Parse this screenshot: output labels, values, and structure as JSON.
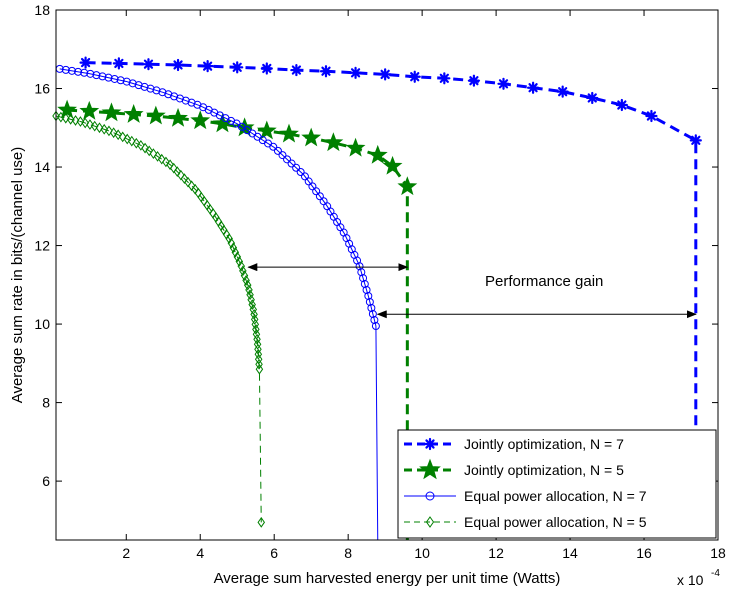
{
  "chart_data": {
    "type": "line",
    "title": "",
    "xlabel": "Average sum harvested energy per unit time (Watts)",
    "ylabel": "Average sum rate in bits/(channel use)",
    "x_multiplier_label": "x 10",
    "x_multiplier_exp": "-4",
    "xlim": [
      0.1,
      18
    ],
    "ylim": [
      4.5,
      18
    ],
    "xticks": [
      2,
      4,
      6,
      8,
      10,
      12,
      14,
      16,
      18
    ],
    "yticks": [
      6,
      8,
      10,
      12,
      14,
      16,
      18
    ],
    "grid": false,
    "legend_position": "bottom-right",
    "series": [
      {
        "name": "Jointly optimization, N = 7",
        "color": "#0000ff",
        "line_style": "dashed",
        "marker": "asterisk",
        "line_width": 3,
        "points": [
          [
            0.9,
            16.66
          ],
          [
            1.8,
            16.64
          ],
          [
            2.6,
            16.62
          ],
          [
            3.4,
            16.6
          ],
          [
            4.2,
            16.57
          ],
          [
            5.0,
            16.54
          ],
          [
            5.8,
            16.51
          ],
          [
            6.6,
            16.47
          ],
          [
            7.4,
            16.44
          ],
          [
            8.2,
            16.4
          ],
          [
            9.0,
            16.36
          ],
          [
            9.8,
            16.3
          ],
          [
            10.6,
            16.26
          ],
          [
            11.4,
            16.2
          ],
          [
            12.2,
            16.12
          ],
          [
            13.0,
            16.02
          ],
          [
            13.8,
            15.92
          ],
          [
            14.6,
            15.76
          ],
          [
            15.4,
            15.58
          ],
          [
            16.2,
            15.3
          ],
          [
            17.4,
            14.68
          ],
          [
            17.4,
            7.0
          ]
        ]
      },
      {
        "name": "Jointly optimization, N = 5",
        "color": "#008000",
        "line_style": "dashed",
        "marker": "star",
        "line_width": 3,
        "points": [
          [
            0.4,
            15.45
          ],
          [
            1.0,
            15.42
          ],
          [
            1.6,
            15.38
          ],
          [
            2.2,
            15.34
          ],
          [
            2.8,
            15.3
          ],
          [
            3.4,
            15.24
          ],
          [
            4.0,
            15.18
          ],
          [
            4.6,
            15.1
          ],
          [
            5.2,
            15.0
          ],
          [
            5.8,
            14.92
          ],
          [
            6.4,
            14.84
          ],
          [
            7.0,
            14.74
          ],
          [
            7.6,
            14.62
          ],
          [
            8.2,
            14.48
          ],
          [
            8.8,
            14.3
          ],
          [
            9.2,
            14.02
          ],
          [
            9.6,
            13.5
          ],
          [
            9.6,
            4.5
          ]
        ]
      },
      {
        "name": "Equal power allocation, N = 7",
        "color": "#0000ff",
        "line_style": "solid",
        "marker": "circle",
        "line_width": 1,
        "points": [
          [
            0.2,
            16.5
          ],
          [
            1.0,
            16.38
          ],
          [
            2.0,
            16.18
          ],
          [
            3.0,
            15.9
          ],
          [
            4.0,
            15.56
          ],
          [
            5.0,
            15.1
          ],
          [
            6.0,
            14.5
          ],
          [
            6.8,
            13.8
          ],
          [
            7.4,
            13.05
          ],
          [
            7.9,
            12.3
          ],
          [
            8.3,
            11.5
          ],
          [
            8.55,
            10.7
          ],
          [
            8.75,
            9.95
          ],
          [
            8.8,
            4.5
          ]
        ]
      },
      {
        "name": "Equal power allocation, N = 5",
        "color": "#008000",
        "line_style": "dashed",
        "marker": "diamond",
        "line_width": 1,
        "points": [
          [
            0.1,
            15.3
          ],
          [
            0.8,
            15.15
          ],
          [
            1.6,
            14.9
          ],
          [
            2.4,
            14.55
          ],
          [
            3.2,
            14.05
          ],
          [
            3.9,
            13.4
          ],
          [
            4.4,
            12.75
          ],
          [
            4.8,
            12.15
          ],
          [
            5.1,
            11.5
          ],
          [
            5.3,
            10.95
          ],
          [
            5.45,
            10.3
          ],
          [
            5.55,
            9.5
          ],
          [
            5.6,
            8.85
          ],
          [
            5.65,
            4.95
          ]
        ]
      }
    ],
    "annotations": [
      {
        "text": "Performance gain",
        "position": "center-right"
      }
    ],
    "gain_arrows": [
      {
        "y": 11.45,
        "x_from": 5.3,
        "x_to": 9.6
      },
      {
        "y": 10.25,
        "x_from": 8.8,
        "x_to": 17.4
      }
    ]
  }
}
